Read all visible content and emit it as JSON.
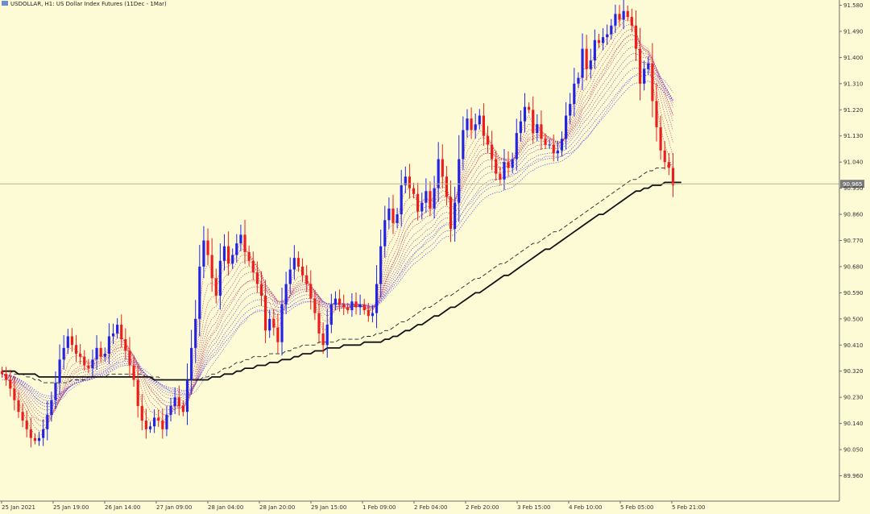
{
  "chart_data": {
    "type": "candlestick",
    "title": "USDOLLAR, H1: US Dollar Index Futures (11Dec - 1Mar)",
    "symbol": "USDOLLAR",
    "timeframe": "H1",
    "description": "US Dollar Index Futures (11Dec - 1Mar)",
    "colors": {
      "background": "#fdfbd6",
      "bull": "#2323e6",
      "bear": "#ec1d1d",
      "fast_ma": "#e04040",
      "slow_ma": "#4a4ae6",
      "long_ma": "#111111",
      "current_price_line": "#b9b98a",
      "price_tag_bg": "#7a7a7a"
    },
    "y_axis": {
      "ticks": [
        "91.580",
        "91.490",
        "91.400",
        "91.310",
        "91.220",
        "91.130",
        "91.040",
        "90.950",
        "90.860",
        "90.770",
        "90.680",
        "90.590",
        "90.500",
        "90.410",
        "90.320",
        "90.230",
        "90.140",
        "90.050",
        "89.960"
      ],
      "ylim": [
        89.9,
        91.6
      ],
      "current_price": "90.965"
    },
    "x_axis": {
      "ticks": [
        "25 Jan 2021",
        "25 Jan 19:00",
        "26 Jan 14:00",
        "27 Jan 09:00",
        "28 Jan 04:00",
        "28 Jan 20:00",
        "29 Jan 15:00",
        "1 Feb 09:00",
        "2 Feb 04:00",
        "2 Feb 20:00",
        "3 Feb 15:00",
        "4 Feb 10:00",
        "5 Feb 05:00",
        "5 Feb 21:00"
      ]
    },
    "grid": false,
    "series": [
      {
        "values": [
          90.31,
          90.29,
          90.26,
          90.22,
          90.18,
          90.15,
          90.12,
          90.09,
          90.08,
          90.09,
          90.12,
          90.17,
          90.22,
          90.28,
          90.36,
          90.4,
          90.44,
          90.41,
          90.38,
          90.37,
          90.34,
          90.33,
          90.36,
          90.4,
          90.37,
          90.38,
          90.44,
          90.45,
          90.48,
          90.43,
          90.39,
          90.34,
          90.29,
          90.2,
          90.15,
          90.12,
          90.13,
          90.16,
          90.15,
          90.12,
          90.17,
          90.2,
          90.23,
          90.2,
          90.18,
          90.29,
          90.4,
          90.5,
          90.68,
          90.77,
          90.72,
          90.64,
          90.58,
          90.7,
          90.75,
          90.69,
          90.72,
          90.76,
          90.79,
          90.73,
          90.7,
          90.66,
          90.62,
          90.58,
          90.46,
          90.5,
          90.47,
          90.42,
          90.55,
          90.62,
          90.67,
          90.71,
          90.68,
          90.65,
          90.62,
          90.57,
          90.52,
          90.45,
          90.41,
          90.48,
          90.55,
          90.57,
          90.55,
          90.54,
          90.53,
          90.56,
          90.54,
          90.55,
          90.53,
          90.51,
          90.52,
          90.62,
          90.75,
          90.84,
          90.88,
          90.83,
          90.86,
          90.96,
          90.99,
          90.95,
          90.93,
          90.87,
          90.9,
          90.94,
          90.88,
          90.95,
          91.05,
          90.99,
          90.92,
          90.81,
          90.9,
          91.05,
          91.15,
          91.19,
          91.15,
          91.17,
          91.2,
          91.13,
          91.1,
          91.05,
          91.0,
          90.98,
          91.04,
          91.02,
          91.05,
          91.14,
          91.18,
          91.23,
          91.22,
          91.14,
          91.17,
          91.12,
          91.1,
          91.1,
          91.07,
          91.08,
          91.12,
          91.2,
          91.24,
          91.31,
          91.33,
          91.43,
          91.36,
          91.39,
          91.46,
          91.45,
          91.47,
          91.48,
          91.51,
          91.55,
          91.53,
          91.56,
          91.54,
          91.51,
          91.43,
          91.31,
          91.36,
          91.38,
          91.25,
          91.16,
          91.08,
          91.04,
          91.02,
          90.96
        ]
      },
      {
        "values": [
          90.3,
          90.3,
          90.29,
          90.27,
          90.25,
          90.22,
          90.2,
          90.17,
          90.16,
          90.15,
          90.15,
          90.16,
          90.17,
          90.2,
          90.23,
          90.26,
          90.29,
          90.31,
          90.32,
          90.33,
          90.33,
          90.33,
          90.34,
          90.35,
          90.35,
          90.36,
          90.37,
          90.39,
          90.4,
          90.4,
          90.4,
          90.39,
          90.37,
          90.34,
          90.31,
          90.28,
          90.26,
          90.24,
          90.22,
          90.21,
          90.2,
          90.2,
          90.2,
          90.2,
          90.2,
          90.21,
          90.24,
          90.28,
          90.33,
          90.39,
          90.43,
          90.45,
          90.47,
          90.5,
          90.53,
          90.55,
          90.57,
          90.59,
          90.61,
          90.62,
          90.63,
          90.63,
          90.63,
          90.62,
          90.6,
          90.59,
          90.58,
          90.56,
          90.56,
          90.57,
          90.58,
          90.59,
          90.6,
          90.6,
          90.6,
          90.6,
          90.59,
          90.57,
          90.56,
          90.55,
          90.55,
          90.55,
          90.55,
          90.55,
          90.55,
          90.55,
          90.55,
          90.55,
          90.55,
          90.54,
          90.54,
          90.55,
          90.58,
          90.62,
          90.66,
          90.69,
          90.72,
          90.76,
          90.8,
          90.82,
          90.84,
          90.85,
          90.86,
          90.87,
          90.88,
          90.89,
          90.91,
          90.92,
          90.92,
          90.91,
          90.91,
          90.93,
          90.96,
          90.99,
          91.01,
          91.03,
          91.06,
          91.07,
          91.07,
          91.07,
          91.06,
          91.05,
          91.05,
          91.05,
          91.05,
          91.06,
          91.08,
          91.1,
          91.12,
          91.12,
          91.13,
          91.13,
          91.13,
          91.12,
          91.12,
          91.11,
          91.11,
          91.12,
          91.14,
          91.16,
          91.18,
          91.22,
          91.24,
          91.27,
          91.3,
          91.32,
          91.34,
          91.37,
          91.39,
          91.42,
          91.44,
          91.46,
          91.47,
          91.48,
          91.47,
          91.45,
          91.44,
          91.43,
          91.4,
          91.36,
          91.32,
          91.28,
          91.24,
          91.2
        ]
      },
      {
        "values": [
          90.29,
          90.29,
          90.29,
          90.29,
          90.28,
          90.27,
          90.26,
          90.25,
          90.23,
          90.22,
          90.21,
          90.21,
          90.21,
          90.21,
          90.22,
          90.23,
          90.25,
          90.26,
          90.27,
          90.28,
          90.29,
          90.29,
          90.3,
          90.31,
          90.31,
          90.32,
          90.33,
          90.34,
          90.35,
          90.35,
          90.36,
          90.36,
          90.35,
          90.35,
          90.33,
          90.32,
          90.31,
          90.29,
          90.28,
          90.27,
          90.26,
          90.25,
          90.24,
          90.24,
          90.24,
          90.24,
          90.24,
          90.25,
          90.27,
          90.29,
          90.32,
          90.34,
          90.36,
          90.38,
          90.4,
          90.42,
          90.44,
          90.46,
          90.48,
          90.49,
          90.51,
          90.52,
          90.53,
          90.53,
          90.53,
          90.53,
          90.53,
          90.53,
          90.53,
          90.54,
          90.54,
          90.55,
          90.55,
          90.56,
          90.56,
          90.56,
          90.56,
          90.56,
          90.56,
          90.55,
          90.55,
          90.55,
          90.55,
          90.55,
          90.55,
          90.55,
          90.55,
          90.55,
          90.55,
          90.55,
          90.55,
          90.55,
          90.56,
          90.58,
          90.6,
          90.62,
          90.64,
          90.66,
          90.68,
          90.7,
          90.72,
          90.74,
          90.75,
          90.77,
          90.78,
          90.79,
          90.81,
          90.82,
          90.83,
          90.83,
          90.84,
          90.85,
          90.87,
          90.89,
          90.9,
          90.92,
          90.94,
          90.95,
          90.96,
          90.97,
          90.98,
          90.98,
          90.99,
          90.99,
          91.0,
          91.0,
          91.01,
          91.02,
          91.03,
          91.04,
          91.05,
          91.05,
          91.06,
          91.06,
          91.06,
          91.06,
          91.06,
          91.07,
          91.07,
          91.08,
          91.09,
          91.11,
          91.12,
          91.14,
          91.16,
          91.18,
          91.2,
          91.22,
          91.24,
          91.26,
          91.28,
          91.3,
          91.31,
          91.33,
          91.34,
          91.35,
          91.35,
          91.35,
          91.35,
          91.34,
          91.33,
          91.32,
          91.3,
          91.28
        ]
      },
      {
        "values": [
          90.32,
          90.32,
          90.32,
          90.31,
          90.31,
          90.31,
          90.3,
          90.3,
          90.29,
          90.29,
          90.28,
          90.28,
          90.28,
          90.28,
          90.28,
          90.28,
          90.28,
          90.29,
          90.29,
          90.29,
          90.29,
          90.3,
          90.3,
          90.3,
          90.3,
          90.3,
          90.31,
          90.31,
          90.31,
          90.31,
          90.31,
          90.31,
          90.31,
          90.31,
          90.31,
          90.3,
          90.3,
          90.3,
          90.3,
          90.29,
          90.29,
          90.29,
          90.29,
          90.29,
          90.29,
          90.29,
          90.29,
          90.29,
          90.29,
          90.3,
          90.3,
          90.31,
          90.31,
          90.32,
          90.33,
          90.33,
          90.34,
          90.35,
          90.35,
          90.36,
          90.36,
          90.37,
          90.37,
          90.37,
          90.37,
          90.38,
          90.38,
          90.38,
          90.38,
          90.39,
          90.39,
          90.4,
          90.4,
          90.41,
          90.41,
          90.41,
          90.41,
          90.42,
          90.42,
          90.42,
          90.42,
          90.42,
          90.43,
          90.43,
          90.43,
          90.43,
          90.43,
          90.43,
          90.44,
          90.44,
          90.44,
          90.45,
          90.45,
          90.46,
          90.46,
          90.47,
          90.48,
          90.49,
          90.49,
          90.5,
          90.51,
          90.52,
          90.53,
          90.54,
          90.54,
          90.55,
          90.56,
          90.57,
          90.58,
          90.58,
          90.59,
          90.6,
          90.61,
          90.62,
          90.63,
          90.64,
          90.64,
          90.65,
          90.66,
          90.67,
          90.68,
          90.69,
          90.69,
          90.7,
          90.71,
          90.72,
          90.73,
          90.74,
          90.75,
          90.76,
          90.76,
          90.77,
          90.78,
          90.79,
          90.8,
          90.8,
          90.81,
          90.82,
          90.83,
          90.84,
          90.85,
          90.86,
          90.87,
          90.88,
          90.89,
          90.9,
          90.91,
          90.92,
          90.93,
          90.94,
          90.95,
          90.96,
          90.97,
          90.98,
          90.98,
          90.99,
          91.0,
          91.01,
          91.01,
          91.02,
          91.02,
          91.02,
          91.03,
          91.03
        ]
      },
      {
        "values": [
          90.32,
          90.32,
          90.32,
          90.32,
          90.31,
          90.31,
          90.31,
          90.31,
          90.31,
          90.3,
          90.3,
          90.3,
          90.3,
          90.3,
          90.3,
          90.3,
          90.3,
          90.3,
          90.3,
          90.3,
          90.3,
          90.3,
          90.3,
          90.3,
          90.3,
          90.3,
          90.3,
          90.3,
          90.3,
          90.3,
          90.3,
          90.3,
          90.3,
          90.3,
          90.3,
          90.3,
          90.3,
          90.29,
          90.29,
          90.29,
          90.29,
          90.29,
          90.29,
          90.29,
          90.29,
          90.29,
          90.29,
          90.29,
          90.29,
          90.29,
          90.29,
          90.3,
          90.3,
          90.3,
          90.31,
          90.31,
          90.31,
          90.32,
          90.32,
          90.33,
          90.33,
          90.33,
          90.34,
          90.34,
          90.34,
          90.35,
          90.35,
          90.35,
          90.36,
          90.36,
          90.36,
          90.37,
          90.37,
          90.38,
          90.38,
          90.38,
          90.39,
          90.39,
          90.39,
          90.4,
          90.4,
          90.4,
          90.4,
          90.41,
          90.41,
          90.41,
          90.41,
          90.41,
          90.42,
          90.42,
          90.42,
          90.42,
          90.42,
          90.43,
          90.43,
          90.44,
          90.44,
          90.45,
          90.46,
          90.46,
          90.47,
          90.48,
          90.48,
          90.49,
          90.5,
          90.51,
          90.51,
          90.52,
          90.53,
          90.54,
          90.54,
          90.55,
          90.56,
          90.57,
          90.58,
          90.59,
          90.59,
          90.6,
          90.61,
          90.62,
          90.63,
          90.64,
          90.65,
          90.65,
          90.66,
          90.67,
          90.68,
          90.69,
          90.7,
          90.71,
          90.72,
          90.73,
          90.74,
          90.74,
          90.75,
          90.76,
          90.77,
          90.78,
          90.79,
          90.8,
          90.81,
          90.82,
          90.83,
          90.84,
          90.85,
          90.86,
          90.86,
          90.87,
          90.88,
          90.89,
          90.9,
          90.91,
          90.92,
          90.93,
          90.94,
          90.94,
          90.95,
          90.95,
          90.96,
          90.96,
          90.96,
          90.97,
          90.97,
          90.97,
          90.97,
          90.97
        ]
      }
    ]
  }
}
